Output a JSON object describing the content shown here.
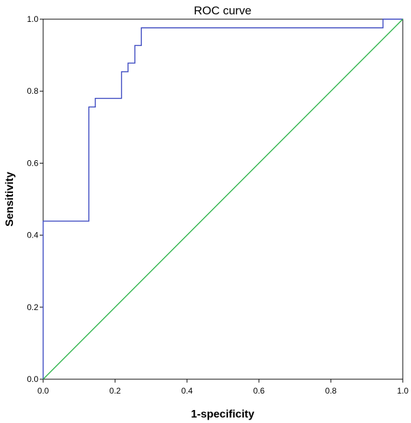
{
  "chart_data": {
    "type": "line",
    "title": "ROC curve",
    "xlabel": "1-specificity",
    "ylabel": "Sensitivity",
    "xlim": [
      0.0,
      1.0
    ],
    "ylim": [
      0.0,
      1.0
    ],
    "x_ticks": [
      "0.0",
      "0.2",
      "0.4",
      "0.6",
      "0.8",
      "1.0"
    ],
    "y_ticks": [
      "0.0",
      "0.2",
      "0.4",
      "0.6",
      "0.8",
      "1.0"
    ],
    "grid": false,
    "legend": "none",
    "series": [
      {
        "color": "#3a47c0",
        "step": true,
        "x": [
          0.0,
          0.0,
          0.127,
          0.127,
          0.145,
          0.145,
          0.218,
          0.218,
          0.236,
          0.236,
          0.255,
          0.255,
          0.273,
          0.273,
          0.945,
          0.945,
          1.0
        ],
        "y": [
          0.0,
          0.439,
          0.439,
          0.756,
          0.756,
          0.78,
          0.78,
          0.854,
          0.854,
          0.878,
          0.878,
          0.927,
          0.927,
          0.976,
          0.976,
          1.0,
          1.0
        ]
      },
      {
        "color": "#2db34a",
        "step": false,
        "x": [
          0.0,
          1.0
        ],
        "y": [
          0.0,
          1.0
        ]
      }
    ]
  }
}
